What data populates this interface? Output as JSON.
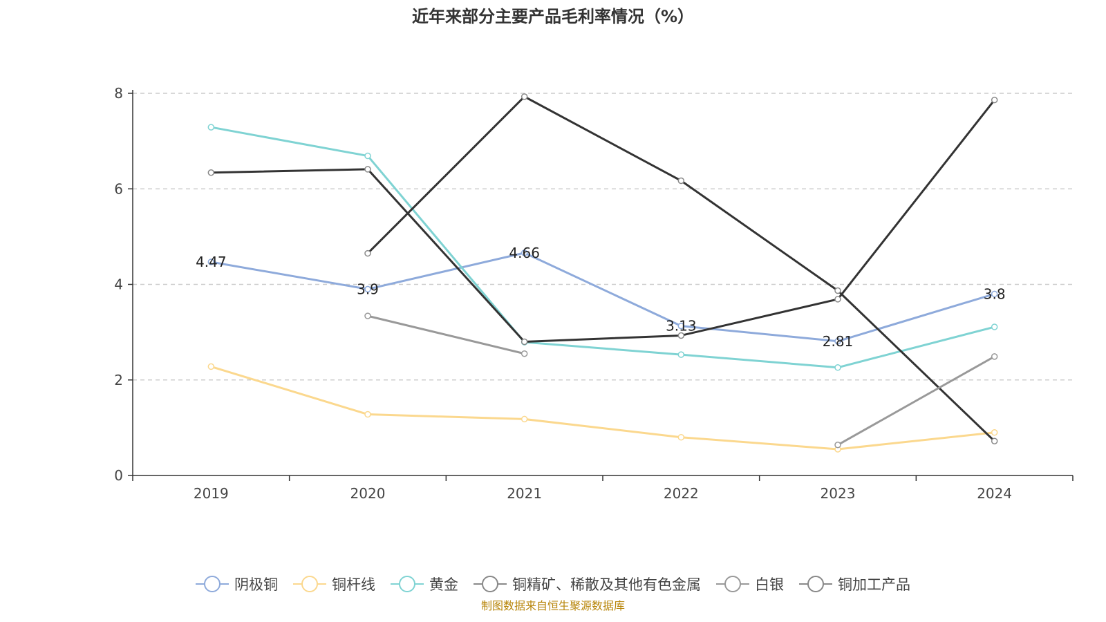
{
  "chart_data": {
    "type": "line",
    "title": "近年来部分主要产品毛利率情况（%）",
    "xlabel": "",
    "ylabel": "",
    "categories": [
      "2019",
      "2020",
      "2021",
      "2022",
      "2023",
      "2024"
    ],
    "ylim": [
      0,
      8
    ],
    "yticks": [
      0,
      2,
      4,
      6,
      8
    ],
    "grid": true,
    "legend_position": "bottom",
    "series": [
      {
        "name": "阴极铜",
        "color": "#8eaadb",
        "values": [
          4.47,
          3.9,
          4.66,
          3.13,
          2.81,
          3.8
        ],
        "labels": [
          "4.47",
          "3.9",
          "4.66",
          "3.13",
          "2.81",
          "3.8"
        ]
      },
      {
        "name": "铜杆线",
        "color": "#fbd88e",
        "values": [
          2.28,
          1.28,
          1.18,
          0.8,
          0.55,
          0.9
        ]
      },
      {
        "name": "黄金",
        "color": "#7fd3d3",
        "values": [
          7.29,
          6.69,
          2.79,
          2.53,
          2.26,
          3.11
        ]
      },
      {
        "name": "铜精矿、稀散及其他有色金属",
        "color": "#333333",
        "values": [
          null,
          4.65,
          7.93,
          6.17,
          3.87,
          0.72
        ]
      },
      {
        "name": "白银",
        "color": "#999999",
        "values": [
          null,
          3.34,
          2.55,
          null,
          0.64,
          2.49
        ]
      },
      {
        "name": "铜加工产品",
        "color": "#333333",
        "values": [
          6.34,
          6.41,
          2.8,
          2.93,
          3.69,
          7.86
        ]
      }
    ]
  },
  "source_note": "制图数据来自恒生聚源数据库"
}
